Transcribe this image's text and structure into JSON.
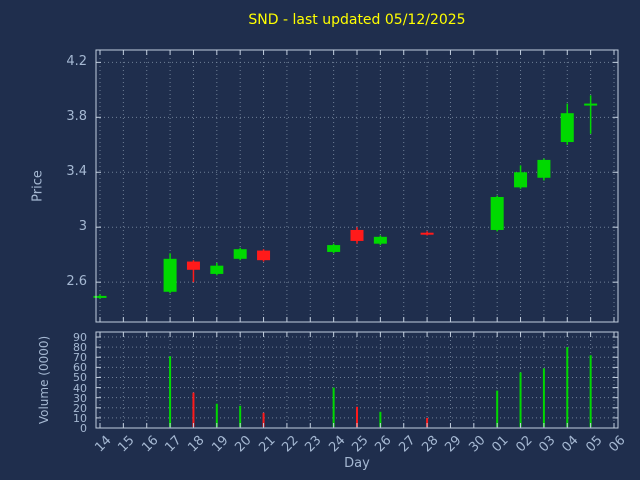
{
  "colors": {
    "background": "#1f2e4d",
    "title": "#ffff00",
    "text": "#a5b8d2",
    "grid": "#7e8ea4",
    "axis": "#c2cede",
    "up": "#00d900",
    "down": "#ff1a1a"
  },
  "chart_data": [
    {
      "type": "candlestick",
      "title": "SND - last updated 05/12/2025",
      "xlabel": "Day",
      "ylabel": "Price",
      "grid": true,
      "x_categories": [
        "14",
        "15",
        "16",
        "17",
        "18",
        "19",
        "20",
        "21",
        "22",
        "23",
        "24",
        "25",
        "26",
        "27",
        "28",
        "29",
        "30",
        "01",
        "02",
        "03",
        "04",
        "05",
        "06"
      ],
      "ylim": [
        2.31,
        4.29
      ],
      "y_ticks": [
        {
          "label": "4.2",
          "value": 4.2
        },
        {
          "label": "3.8",
          "value": 3.8
        },
        {
          "label": "3.4",
          "value": 3.4
        },
        {
          "label": "3",
          "value": 3.0
        },
        {
          "label": "2.6",
          "value": 2.6
        }
      ],
      "candles": [
        {
          "day": "14",
          "open": 2.49,
          "high": 2.51,
          "low": 2.48,
          "close": 2.5
        },
        {
          "day": "17",
          "open": 2.53,
          "high": 2.81,
          "low": 2.52,
          "close": 2.77
        },
        {
          "day": "18",
          "open": 2.75,
          "high": 2.76,
          "low": 2.6,
          "close": 2.69
        },
        {
          "day": "19",
          "open": 2.66,
          "high": 2.74,
          "low": 2.65,
          "close": 2.72
        },
        {
          "day": "20",
          "open": 2.77,
          "high": 2.85,
          "low": 2.76,
          "close": 2.84
        },
        {
          "day": "21",
          "open": 2.83,
          "high": 2.84,
          "low": 2.75,
          "close": 2.76
        },
        {
          "day": "24",
          "open": 2.82,
          "high": 2.88,
          "low": 2.81,
          "close": 2.87
        },
        {
          "day": "25",
          "open": 2.98,
          "high": 3.0,
          "low": 2.88,
          "close": 2.9
        },
        {
          "day": "26",
          "open": 2.88,
          "high": 2.94,
          "low": 2.87,
          "close": 2.93
        },
        {
          "day": "28",
          "open": 2.96,
          "high": 2.97,
          "low": 2.94,
          "close": 2.95
        },
        {
          "day": "01",
          "open": 2.98,
          "high": 3.23,
          "low": 2.97,
          "close": 3.22
        },
        {
          "day": "02",
          "open": 3.29,
          "high": 3.45,
          "low": 3.28,
          "close": 3.4
        },
        {
          "day": "03",
          "open": 3.36,
          "high": 3.5,
          "low": 3.34,
          "close": 3.49
        },
        {
          "day": "04",
          "open": 3.62,
          "high": 3.9,
          "low": 3.6,
          "close": 3.83
        },
        {
          "day": "05",
          "open": 3.89,
          "high": 3.96,
          "low": 3.68,
          "close": 3.9
        }
      ]
    },
    {
      "type": "bar",
      "ylabel": "Volume (0000)",
      "grid": true,
      "ylim": [
        0,
        95
      ],
      "y_ticks": [
        {
          "label": "0",
          "value": 0
        },
        {
          "label": "10",
          "value": 10
        },
        {
          "label": "20",
          "value": 20
        },
        {
          "label": "30",
          "value": 30
        },
        {
          "label": "40",
          "value": 40
        },
        {
          "label": "50",
          "value": 50
        },
        {
          "label": "60",
          "value": 60
        },
        {
          "label": "70",
          "value": 70
        },
        {
          "label": "80",
          "value": 80
        },
        {
          "label": "90",
          "value": 90
        }
      ],
      "bars": [
        {
          "day": "17",
          "value": 71,
          "direction": "up"
        },
        {
          "day": "18",
          "value": 35,
          "direction": "down"
        },
        {
          "day": "19",
          "value": 24,
          "direction": "up"
        },
        {
          "day": "20",
          "value": 22,
          "direction": "up"
        },
        {
          "day": "21",
          "value": 15,
          "direction": "down"
        },
        {
          "day": "24",
          "value": 40,
          "direction": "up"
        },
        {
          "day": "25",
          "value": 21,
          "direction": "down"
        },
        {
          "day": "26",
          "value": 16,
          "direction": "up"
        },
        {
          "day": "28",
          "value": 10,
          "direction": "down"
        },
        {
          "day": "01",
          "value": 37,
          "direction": "up"
        },
        {
          "day": "02",
          "value": 55,
          "direction": "up"
        },
        {
          "day": "03",
          "value": 59,
          "direction": "up"
        },
        {
          "day": "04",
          "value": 80,
          "direction": "up"
        },
        {
          "day": "05",
          "value": 72,
          "direction": "up"
        }
      ]
    }
  ]
}
